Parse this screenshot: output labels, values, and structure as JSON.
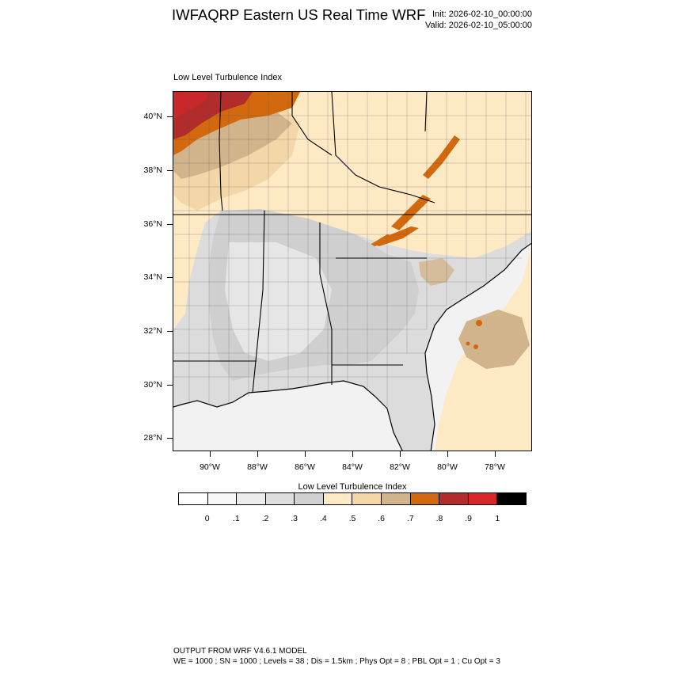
{
  "header": {
    "title": "IWFAQRP Eastern US Real Time WRF",
    "init": "Init: 2026-02-10_00:00:00",
    "valid": "Valid: 2026-02-10_05:00:00"
  },
  "plot": {
    "title": "Low Level Turbulence Index",
    "lat_labels": [
      "40°N",
      "38°N",
      "36°N",
      "34°N",
      "32°N",
      "30°N",
      "28°N"
    ],
    "lon_labels": [
      "90°W",
      "88°W",
      "86°W",
      "84°W",
      "82°W",
      "80°W",
      "78°W"
    ]
  },
  "colorbar": {
    "title": "Low Level Turbulence Index",
    "labels": [
      "0",
      ".1",
      ".2",
      ".3",
      ".4",
      ".5",
      ".6",
      ".7",
      ".8",
      ".9",
      "1"
    ],
    "colors": [
      "#ffffff",
      "#f7f7f7",
      "#ececec",
      "#dedede",
      "#d0d0d0",
      "#fde9c3",
      "#f3d7a8",
      "#d2b48c",
      "#d2690e",
      "#b22c2c",
      "#d8262b",
      "#000000"
    ]
  },
  "footer": {
    "line1": "OUTPUT FROM WRF V4.6.1 MODEL",
    "line2": "WE = 1000 ; SN = 1000 ; Levels = 38 ; Dis = 1.5km ; Phys Opt = 8 ; PBL Opt = 1 ; Cu Opt = 3"
  }
}
